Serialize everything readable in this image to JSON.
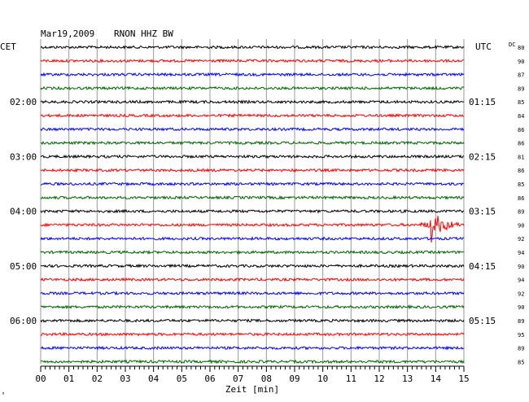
{
  "header": {
    "date": "Mar19,2009",
    "station": "RNON HHZ BW"
  },
  "left_zone_label": "CET",
  "right_zone_label": "UTC",
  "dc_label": "DC",
  "corner_mark": "⁶",
  "chart_data": {
    "type": "line",
    "title": "",
    "xlabel": "Zeit [min]",
    "ylabel": "",
    "xlim": [
      0,
      15
    ],
    "x_ticks": [
      "00",
      "01",
      "02",
      "03",
      "04",
      "05",
      "06",
      "07",
      "08",
      "09",
      "10",
      "11",
      "12",
      "13",
      "14",
      "15"
    ],
    "grid": true,
    "trace_colors": [
      "#000000",
      "#ff0000",
      "#0000ff",
      "#006600"
    ],
    "left_time_labels": [
      {
        "trace_index": 4,
        "label": "02:00"
      },
      {
        "trace_index": 8,
        "label": "03:00"
      },
      {
        "trace_index": 12,
        "label": "04:00"
      },
      {
        "trace_index": 16,
        "label": "05:00"
      },
      {
        "trace_index": 20,
        "label": "06:00"
      }
    ],
    "right_time_labels": [
      {
        "trace_index": 4,
        "label": "01:15"
      },
      {
        "trace_index": 8,
        "label": "02:15"
      },
      {
        "trace_index": 12,
        "label": "03:15"
      },
      {
        "trace_index": 16,
        "label": "04:15"
      },
      {
        "trace_index": 20,
        "label": "05:15"
      }
    ],
    "dc_offsets": [
      "80",
      "90",
      "87",
      "89",
      "85",
      "84",
      "86",
      "86",
      "81",
      "86",
      "85",
      "86",
      "89",
      "90",
      "92",
      "94",
      "90",
      "94",
      "92",
      "90",
      "89",
      "95",
      "89",
      "85"
    ],
    "event": {
      "trace_index": 13,
      "start_min": 13.5,
      "end_min": 14.8,
      "peak_min": 13.85
    }
  }
}
